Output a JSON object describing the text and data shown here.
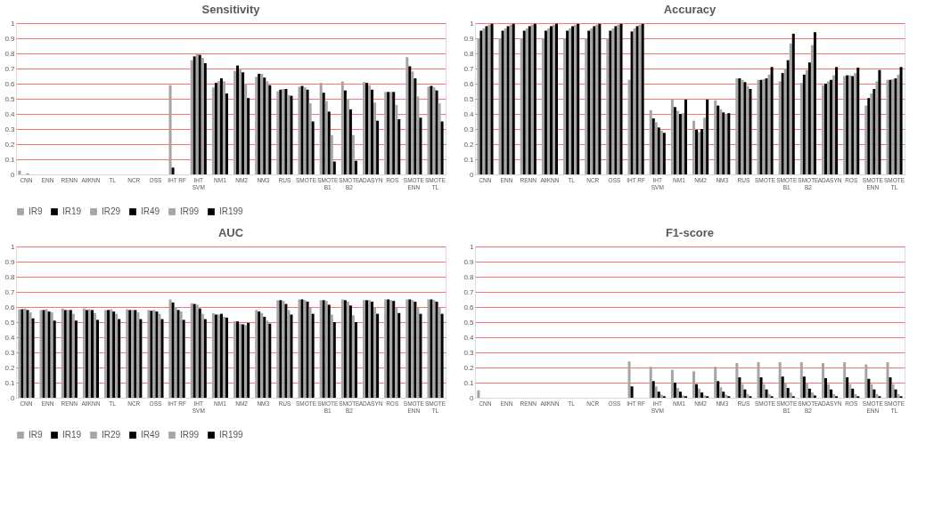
{
  "chart_data": [
    {
      "type": "bar",
      "title": "Sensitivity",
      "categories": [
        "CNN",
        "ENN",
        "RENN",
        "AllKNN",
        "TL",
        "NCR",
        "OSS",
        "IHT RF",
        "IHT SVM",
        "NM1",
        "NM2",
        "NM3",
        "RUS",
        "SMOTE",
        "SMOTE B1",
        "SMOTE B2",
        "ADASYN",
        "ROS",
        "SMOTE ENN",
        "SMOTE TL"
      ],
      "ylim": [
        0,
        1
      ],
      "yticks": [
        0,
        0.1,
        0.2,
        0.3,
        0.4,
        0.5,
        0.6,
        0.7,
        0.8,
        0.9,
        1
      ],
      "grid": "y",
      "legend": "bottom",
      "series": [
        {
          "name": "IR9",
          "color": "#a5a5a5",
          "values": [
            0.025,
            0,
            0,
            0,
            0,
            0,
            0,
            0.59,
            0.755,
            0.575,
            0.685,
            0.645,
            0.55,
            0.58,
            0.605,
            0.615,
            0.61,
            0.545,
            0.775,
            0.58
          ]
        },
        {
          "name": "IR19",
          "color": "#000000",
          "values": [
            0,
            0,
            0,
            0,
            0,
            0,
            0,
            0.045,
            0.78,
            0.605,
            0.72,
            0.665,
            0.56,
            0.585,
            0.54,
            0.555,
            0.605,
            0.545,
            0.715,
            0.585
          ]
        },
        {
          "name": "IR29",
          "color": "#a5a5a5",
          "values": [
            0,
            0,
            0,
            0,
            0,
            0,
            0,
            0,
            0.8,
            0.615,
            0.7,
            0.665,
            0.565,
            0.575,
            0.485,
            0.5,
            0.59,
            0.545,
            0.68,
            0.575
          ]
        },
        {
          "name": "IR49",
          "color": "#000000",
          "values": [
            0.003,
            0,
            0,
            0,
            0,
            0,
            0,
            0,
            0.79,
            0.635,
            0.675,
            0.64,
            0.565,
            0.56,
            0.415,
            0.43,
            0.56,
            0.545,
            0.635,
            0.555
          ]
        },
        {
          "name": "IR99",
          "color": "#a5a5a5",
          "values": [
            0,
            0,
            0,
            0,
            0,
            0,
            0,
            0,
            0.77,
            0.615,
            0.6,
            0.615,
            0.525,
            0.47,
            0.26,
            0.26,
            0.475,
            0.46,
            0.515,
            0.47
          ]
        },
        {
          "name": "IR199",
          "color": "#000000",
          "values": [
            0,
            0,
            0,
            0,
            0,
            0,
            0,
            0,
            0.735,
            0.535,
            0.505,
            0.59,
            0.52,
            0.35,
            0.085,
            0.09,
            0.355,
            0.365,
            0.375,
            0.35
          ]
        }
      ]
    },
    {
      "type": "bar",
      "title": "Accuracy",
      "categories": [
        "CNN",
        "ENN",
        "RENN",
        "AllKNN",
        "TL",
        "NCR",
        "OSS",
        "IHT RF",
        "IHT SVM",
        "NM1",
        "NM2",
        "NM3",
        "RUS",
        "SMOTE",
        "SMOTE B1",
        "SMOTE B2",
        "ADASYN",
        "ROS",
        "SMOTE ENN",
        "SMOTE TL"
      ],
      "ylim": [
        0,
        1
      ],
      "yticks": [
        0,
        0.1,
        0.2,
        0.3,
        0.4,
        0.5,
        0.6,
        0.7,
        0.8,
        0.9,
        1
      ],
      "grid": "y",
      "legend": "bottom",
      "series": [
        {
          "name": "IR9",
          "color": "#a5a5a5",
          "values": [
            0.9,
            0.9,
            0.9,
            0.9,
            0.9,
            0.9,
            0.9,
            0.625,
            0.425,
            0.495,
            0.355,
            0.49,
            0.635,
            0.625,
            0.615,
            0.605,
            0.59,
            0.65,
            0.455,
            0.625
          ]
        },
        {
          "name": "IR19",
          "color": "#000000",
          "values": [
            0.95,
            0.95,
            0.95,
            0.95,
            0.95,
            0.95,
            0.95,
            0.945,
            0.37,
            0.445,
            0.295,
            0.455,
            0.635,
            0.625,
            0.67,
            0.66,
            0.6,
            0.655,
            0.505,
            0.625
          ]
        },
        {
          "name": "IR29",
          "color": "#a5a5a5",
          "values": [
            0.965,
            0.965,
            0.965,
            0.965,
            0.965,
            0.965,
            0.965,
            0.965,
            0.345,
            0.42,
            0.28,
            0.43,
            0.625,
            0.63,
            0.7,
            0.69,
            0.615,
            0.655,
            0.535,
            0.63
          ]
        },
        {
          "name": "IR49",
          "color": "#000000",
          "values": [
            0.98,
            0.98,
            0.98,
            0.98,
            0.98,
            0.98,
            0.98,
            0.98,
            0.31,
            0.4,
            0.3,
            0.41,
            0.61,
            0.635,
            0.755,
            0.74,
            0.625,
            0.65,
            0.565,
            0.635
          ]
        },
        {
          "name": "IR99",
          "color": "#a5a5a5",
          "values": [
            0.99,
            0.99,
            0.99,
            0.99,
            0.99,
            0.99,
            0.99,
            0.99,
            0.29,
            0.405,
            0.375,
            0.395,
            0.585,
            0.66,
            0.865,
            0.855,
            0.655,
            0.67,
            0.615,
            0.66
          ]
        },
        {
          "name": "IR199",
          "color": "#000000",
          "values": [
            0.995,
            0.995,
            0.995,
            0.995,
            0.995,
            0.995,
            0.995,
            0.995,
            0.275,
            0.495,
            0.495,
            0.405,
            0.565,
            0.71,
            0.93,
            0.94,
            0.71,
            0.705,
            0.69,
            0.71
          ]
        }
      ]
    },
    {
      "type": "bar",
      "title": "AUC",
      "categories": [
        "CNN",
        "ENN",
        "RENN",
        "AllKNN",
        "TL",
        "NCR",
        "OSS",
        "IHT RF",
        "IHT SVM",
        "NM1",
        "NM2",
        "NM3",
        "RUS",
        "SMOTE",
        "SMOTE B1",
        "SMOTE B2",
        "ADASYN",
        "ROS",
        "SMOTE ENN",
        "SMOTE TL"
      ],
      "ylim": [
        0,
        1
      ],
      "yticks": [
        0,
        0.1,
        0.2,
        0.3,
        0.4,
        0.5,
        0.6,
        0.7,
        0.8,
        0.9,
        1
      ],
      "grid": "y",
      "legend": "bottom",
      "series": [
        {
          "name": "IR9",
          "color": "#a5a5a5",
          "values": [
            0.585,
            0.58,
            0.59,
            0.59,
            0.58,
            0.585,
            0.58,
            0.65,
            0.625,
            0.56,
            0.505,
            0.58,
            0.645,
            0.65,
            0.645,
            0.65,
            0.645,
            0.65,
            0.65,
            0.65
          ]
        },
        {
          "name": "IR19",
          "color": "#000000",
          "values": [
            0.585,
            0.58,
            0.58,
            0.58,
            0.58,
            0.58,
            0.575,
            0.63,
            0.62,
            0.55,
            0.505,
            0.57,
            0.645,
            0.65,
            0.645,
            0.645,
            0.645,
            0.65,
            0.65,
            0.65
          ]
        },
        {
          "name": "IR29",
          "color": "#a5a5a5",
          "values": [
            0.59,
            0.585,
            0.58,
            0.585,
            0.585,
            0.58,
            0.58,
            0.6,
            0.615,
            0.55,
            0.49,
            0.56,
            0.64,
            0.645,
            0.64,
            0.635,
            0.645,
            0.645,
            0.645,
            0.645
          ]
        },
        {
          "name": "IR49",
          "color": "#000000",
          "values": [
            0.58,
            0.57,
            0.58,
            0.58,
            0.57,
            0.58,
            0.57,
            0.58,
            0.59,
            0.555,
            0.485,
            0.535,
            0.62,
            0.635,
            0.615,
            0.61,
            0.635,
            0.64,
            0.635,
            0.635
          ]
        },
        {
          "name": "IR99",
          "color": "#a5a5a5",
          "values": [
            0.565,
            0.565,
            0.555,
            0.56,
            0.555,
            0.565,
            0.555,
            0.57,
            0.555,
            0.535,
            0.48,
            0.51,
            0.58,
            0.595,
            0.55,
            0.545,
            0.595,
            0.595,
            0.595,
            0.595
          ]
        },
        {
          "name": "IR199",
          "color": "#000000",
          "values": [
            0.525,
            0.51,
            0.51,
            0.515,
            0.52,
            0.52,
            0.52,
            0.515,
            0.52,
            0.53,
            0.495,
            0.49,
            0.55,
            0.555,
            0.5,
            0.5,
            0.555,
            0.56,
            0.555,
            0.555
          ]
        }
      ]
    },
    {
      "type": "bar",
      "title": "F1-score",
      "categories": [
        "CNN",
        "ENN",
        "RENN",
        "AllKNN",
        "TL",
        "NCR",
        "OSS",
        "IHT RF",
        "IHT SVM",
        "NM1",
        "NM2",
        "NM3",
        "RUS",
        "SMOTE",
        "SMOTE B1",
        "SMOTE B2",
        "ADASYN",
        "ROS",
        "SMOTE ENN",
        "SMOTE TL"
      ],
      "ylim": [
        0,
        1
      ],
      "yticks": [
        0,
        0.1,
        0.2,
        0.3,
        0.4,
        0.5,
        0.6,
        0.7,
        0.8,
        0.9,
        1
      ],
      "grid": "y",
      "legend": "bottom",
      "series": [
        {
          "name": "IR9",
          "color": "#a5a5a5",
          "values": [
            0.05,
            0,
            0,
            0,
            0,
            0,
            0,
            0.24,
            0.205,
            0.185,
            0.175,
            0.205,
            0.23,
            0.235,
            0.235,
            0.235,
            0.23,
            0.235,
            0.22,
            0.235
          ]
        },
        {
          "name": "IR19",
          "color": "#000000",
          "values": [
            0,
            0,
            0,
            0,
            0,
            0,
            0,
            0.075,
            0.11,
            0.1,
            0.09,
            0.11,
            0.135,
            0.135,
            0.14,
            0.14,
            0.13,
            0.135,
            0.125,
            0.135
          ]
        },
        {
          "name": "IR29",
          "color": "#a5a5a5",
          "values": [
            0,
            0,
            0,
            0,
            0,
            0,
            0,
            0,
            0.075,
            0.065,
            0.06,
            0.07,
            0.09,
            0.09,
            0.1,
            0.095,
            0.09,
            0.09,
            0.09,
            0.09
          ]
        },
        {
          "name": "IR49",
          "color": "#000000",
          "values": [
            0,
            0,
            0,
            0,
            0,
            0,
            0,
            0,
            0.04,
            0.04,
            0.035,
            0.04,
            0.055,
            0.055,
            0.065,
            0.06,
            0.055,
            0.06,
            0.055,
            0.055
          ]
        },
        {
          "name": "IR99",
          "color": "#a5a5a5",
          "values": [
            0,
            0,
            0,
            0,
            0,
            0,
            0,
            0,
            0.02,
            0.015,
            0.015,
            0.02,
            0.025,
            0.025,
            0.035,
            0.035,
            0.025,
            0.025,
            0.025,
            0.025
          ]
        },
        {
          "name": "IR199",
          "color": "#000000",
          "values": [
            0,
            0,
            0,
            0,
            0,
            0,
            0,
            0,
            0.01,
            0.01,
            0.01,
            0.01,
            0.01,
            0.01,
            0.01,
            0.015,
            0.01,
            0.01,
            0.01,
            0.01
          ]
        }
      ]
    }
  ]
}
